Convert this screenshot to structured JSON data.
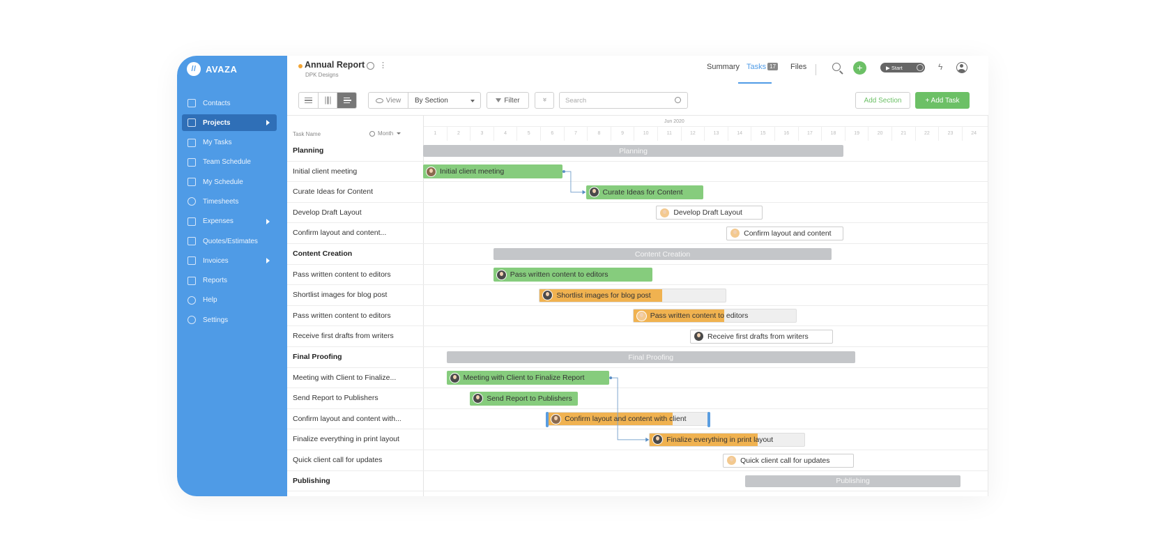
{
  "app": {
    "brand": "AVAZA",
    "brand_mark": "//"
  },
  "sidebar": {
    "items": [
      {
        "label": "Contacts",
        "icon": "contacts-icon",
        "active": false,
        "caret": false
      },
      {
        "label": "Projects",
        "icon": "folder-icon",
        "active": true,
        "caret": true
      },
      {
        "label": "My Tasks",
        "icon": "tasks-icon",
        "active": false,
        "caret": false
      },
      {
        "label": "Team Schedule",
        "icon": "calendar-icon",
        "active": false,
        "caret": false
      },
      {
        "label": "My Schedule",
        "icon": "calendar-check-icon",
        "active": false,
        "caret": false
      },
      {
        "label": "Timesheets",
        "icon": "stopwatch-icon",
        "active": false,
        "caret": false
      },
      {
        "label": "Expenses",
        "icon": "expenses-icon",
        "active": false,
        "caret": true
      },
      {
        "label": "Quotes/Estimates",
        "icon": "quotes-icon",
        "active": false,
        "caret": false
      },
      {
        "label": "Invoices",
        "icon": "invoice-icon",
        "active": false,
        "caret": true
      },
      {
        "label": "Reports",
        "icon": "chart-icon",
        "active": false,
        "caret": false
      },
      {
        "label": "Help",
        "icon": "help-icon",
        "active": false,
        "caret": false
      },
      {
        "label": "Settings",
        "icon": "gear-icon",
        "active": false,
        "caret": false
      }
    ]
  },
  "header": {
    "project_title": "Annual Report",
    "project_client": "DPK Designs",
    "kebab": "⋮",
    "tabs": [
      {
        "label": "Summary"
      },
      {
        "label": "Tasks",
        "count": "17"
      },
      {
        "label": "Files"
      }
    ],
    "plus": "+",
    "start_label": "▶ Start",
    "bolt": "ϟ"
  },
  "toolbar": {
    "view_label": "View",
    "group_select": "By Section",
    "filter_label": "Filter",
    "collapse_glyph": "»",
    "search_placeholder": "Search",
    "add_section": "Add Section",
    "add_task": "+ Add Task"
  },
  "grid": {
    "task_name_header": "Task Name",
    "month_filter": "Month",
    "month_label": "Jun 2020",
    "days": [
      "1",
      "2",
      "3",
      "4",
      "5",
      "6",
      "7",
      "8",
      "9",
      "10",
      "11",
      "12",
      "13",
      "14",
      "15",
      "16",
      "17",
      "18",
      "19",
      "20",
      "21",
      "22",
      "23",
      "24"
    ],
    "rows": [
      {
        "name": "Planning",
        "section": true,
        "start": 1,
        "end": 18.95,
        "label": "Planning"
      },
      {
        "name": "Initial client meeting",
        "section": false,
        "start": 1,
        "end": 6.95,
        "label": "Initial client meeting",
        "style": "green",
        "avatar": "a1",
        "progress": 1
      },
      {
        "name": "Curate Ideas for Content",
        "section": false,
        "start": 7.95,
        "end": 12.95,
        "label": "Curate Ideas for Content",
        "style": "green",
        "avatar": "a2",
        "progress": 1
      },
      {
        "name": "Develop Draft Layout",
        "section": false,
        "start": 10.95,
        "end": 15.5,
        "label": "Develop Draft Layout",
        "style": "white",
        "avatar": "a3",
        "progress": 0
      },
      {
        "name": "Confirm layout and content...",
        "section": false,
        "start": 13.95,
        "end": 18.95,
        "label": "Confirm layout and content",
        "style": "white",
        "avatar": "a3",
        "progress": 0
      },
      {
        "name": "Content Creation",
        "section": true,
        "start": 4,
        "end": 18.45,
        "label": "Content Creation"
      },
      {
        "name": "Pass written content to editors",
        "section": false,
        "start": 4,
        "end": 10.8,
        "label": "Pass written content to editors",
        "style": "green",
        "avatar": "a2",
        "progress": 1
      },
      {
        "name": "Shortlist images for blog post",
        "section": false,
        "start": 5.95,
        "end": 13.95,
        "label": "Shortlist images for blog post",
        "style": "orange",
        "avatar": "a2",
        "progress": 0.66
      },
      {
        "name": "Pass written content to editors",
        "section": false,
        "start": 9.95,
        "end": 16.95,
        "label": "Pass written content to editors",
        "style": "orange",
        "avatar": "a3",
        "progress": 0.56
      },
      {
        "name": "Receive first drafts from writers",
        "section": false,
        "start": 12.4,
        "end": 18.5,
        "label": "Receive first drafts from writers",
        "style": "white",
        "avatar": "a2",
        "progress": 0
      },
      {
        "name": "Final Proofing",
        "section": true,
        "start": 2,
        "end": 19.45,
        "label": "Final Proofing"
      },
      {
        "name": "Meeting with Client to Finalize...",
        "section": false,
        "start": 2,
        "end": 8.95,
        "label": "Meeting with Client to Finalize Report",
        "style": "green",
        "avatar": "a2",
        "progress": 1
      },
      {
        "name": "Send Report to Publishers",
        "section": false,
        "start": 3,
        "end": 7.6,
        "label": "Send Report to Publishers",
        "style": "green",
        "avatar": "a2",
        "progress": 1
      },
      {
        "name": "Confirm layout and content with...",
        "section": false,
        "start": 6.3,
        "end": 13.2,
        "label": "Confirm layout and content with client",
        "style": "orange",
        "avatar": "a1",
        "progress": 0.78,
        "selected": true
      },
      {
        "name": "Finalize everything in print layout",
        "section": false,
        "start": 10.65,
        "end": 17.3,
        "label": "Finalize everything in print layout",
        "style": "orange",
        "avatar": "a2",
        "progress": 0.7
      },
      {
        "name": "Quick client call for updates",
        "section": false,
        "start": 13.8,
        "end": 19.4,
        "label": "Quick client call for updates",
        "style": "white",
        "avatar": "a3",
        "progress": 0
      },
      {
        "name": "Publishing",
        "section": true,
        "start": 14.75,
        "end": 23.95,
        "label": "Publishing"
      }
    ]
  }
}
